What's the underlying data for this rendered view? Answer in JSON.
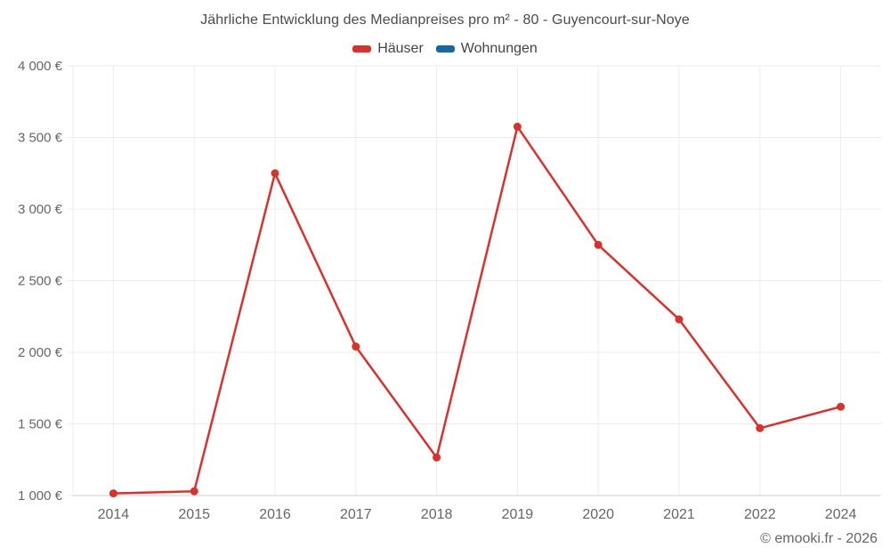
{
  "title": "Jährliche Entwicklung des Medianpreises pro m² - 80 - Guyencourt-sur-Noye",
  "legend": {
    "items": [
      {
        "label": "Häuser",
        "color": "#d7322d"
      },
      {
        "label": "Wohnungen",
        "color": "#15699f"
      }
    ]
  },
  "footer": {
    "text": "© emooki.fr - 2026"
  },
  "colors": {
    "grid": "#ececec",
    "axis_line": "#cfcfcf",
    "tick_label": "#666666",
    "title_text": "#4a4a4a",
    "background": "#ffffff"
  },
  "chart_data": {
    "type": "line",
    "title": "Jährliche Entwicklung des Medianpreises pro m² - 80 - Guyencourt-sur-Noye",
    "categories": [
      "2014",
      "2015",
      "2016",
      "2017",
      "2018",
      "2019",
      "2020",
      "2021",
      "2022",
      "2024"
    ],
    "series": [
      {
        "name": "Häuser",
        "color": "#d7322d",
        "values": [
          1015,
          1030,
          3250,
          2040,
          1265,
          3575,
          2750,
          2230,
          1470,
          1620
        ]
      },
      {
        "name": "Wohnungen",
        "color": "#15699f",
        "values": []
      }
    ],
    "xlabel": "",
    "ylabel": "",
    "ylim": [
      1000,
      4000
    ],
    "ytick_values": [
      1000,
      1500,
      2000,
      2500,
      3000,
      3500,
      4000
    ],
    "ytick_labels": [
      "1 000 €",
      "1 500 €",
      "2 000 €",
      "2 500 €",
      "3 000 €",
      "3 500 €",
      "4 000 €"
    ],
    "grid": true,
    "legend_position": "top",
    "unit": "€"
  }
}
